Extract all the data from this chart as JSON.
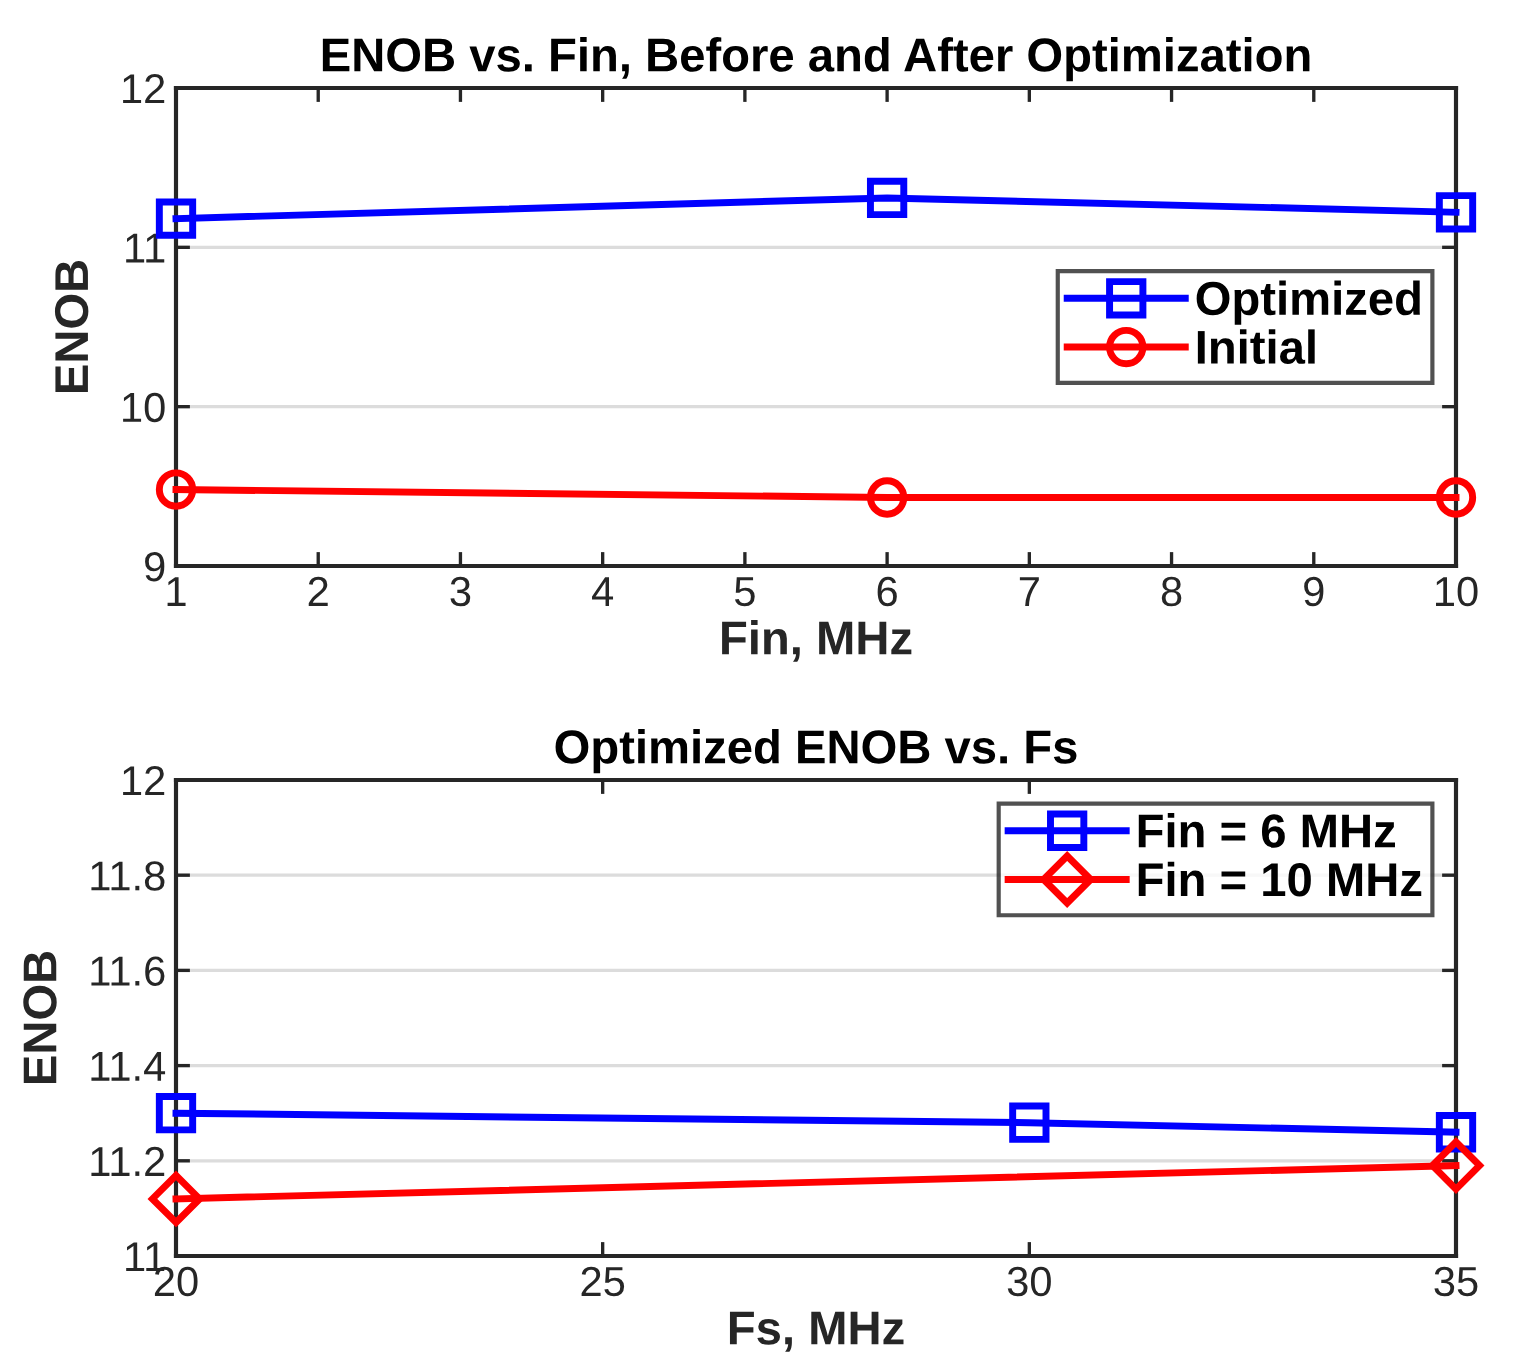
{
  "chart_data": [
    {
      "type": "line",
      "title": "ENOB vs. Fin, Before and After Optimization",
      "xlabel": "Fin, MHz",
      "ylabel": "ENOB",
      "x": [
        1,
        6,
        10
      ],
      "xlim": [
        1,
        10
      ],
      "xticks": [
        1,
        2,
        3,
        4,
        5,
        6,
        7,
        8,
        9,
        10
      ],
      "ylim": [
        9,
        12
      ],
      "yticks": [
        9,
        10,
        11,
        12
      ],
      "grid": "y",
      "legend": "right",
      "series": [
        {
          "name": "Optimized",
          "color": "#0000ff",
          "marker": "square",
          "values": [
            11.18,
            11.31,
            11.22
          ]
        },
        {
          "name": "Initial",
          "color": "#ff0000",
          "marker": "circle",
          "values": [
            9.48,
            9.43,
            9.43
          ]
        }
      ]
    },
    {
      "type": "line",
      "title": "Optimized ENOB vs. Fs",
      "xlabel": "Fs, MHz",
      "ylabel": "ENOB",
      "xlim": [
        20,
        35
      ],
      "xticks": [
        20,
        25,
        30,
        35
      ],
      "ylim": [
        11,
        12
      ],
      "yticks": [
        11,
        11.2,
        11.4,
        11.6,
        11.8,
        12
      ],
      "grid": "y",
      "legend": "top right",
      "series": [
        {
          "name": "Fin = 6 MHz",
          "color": "#0000ff",
          "marker": "square",
          "x": [
            20,
            30,
            35
          ],
          "values": [
            11.3,
            11.28,
            11.26
          ]
        },
        {
          "name": "Fin = 10 MHz",
          "color": "#ff0000",
          "marker": "diamond",
          "x": [
            20,
            35
          ],
          "values": [
            11.12,
            11.19
          ]
        }
      ]
    }
  ]
}
